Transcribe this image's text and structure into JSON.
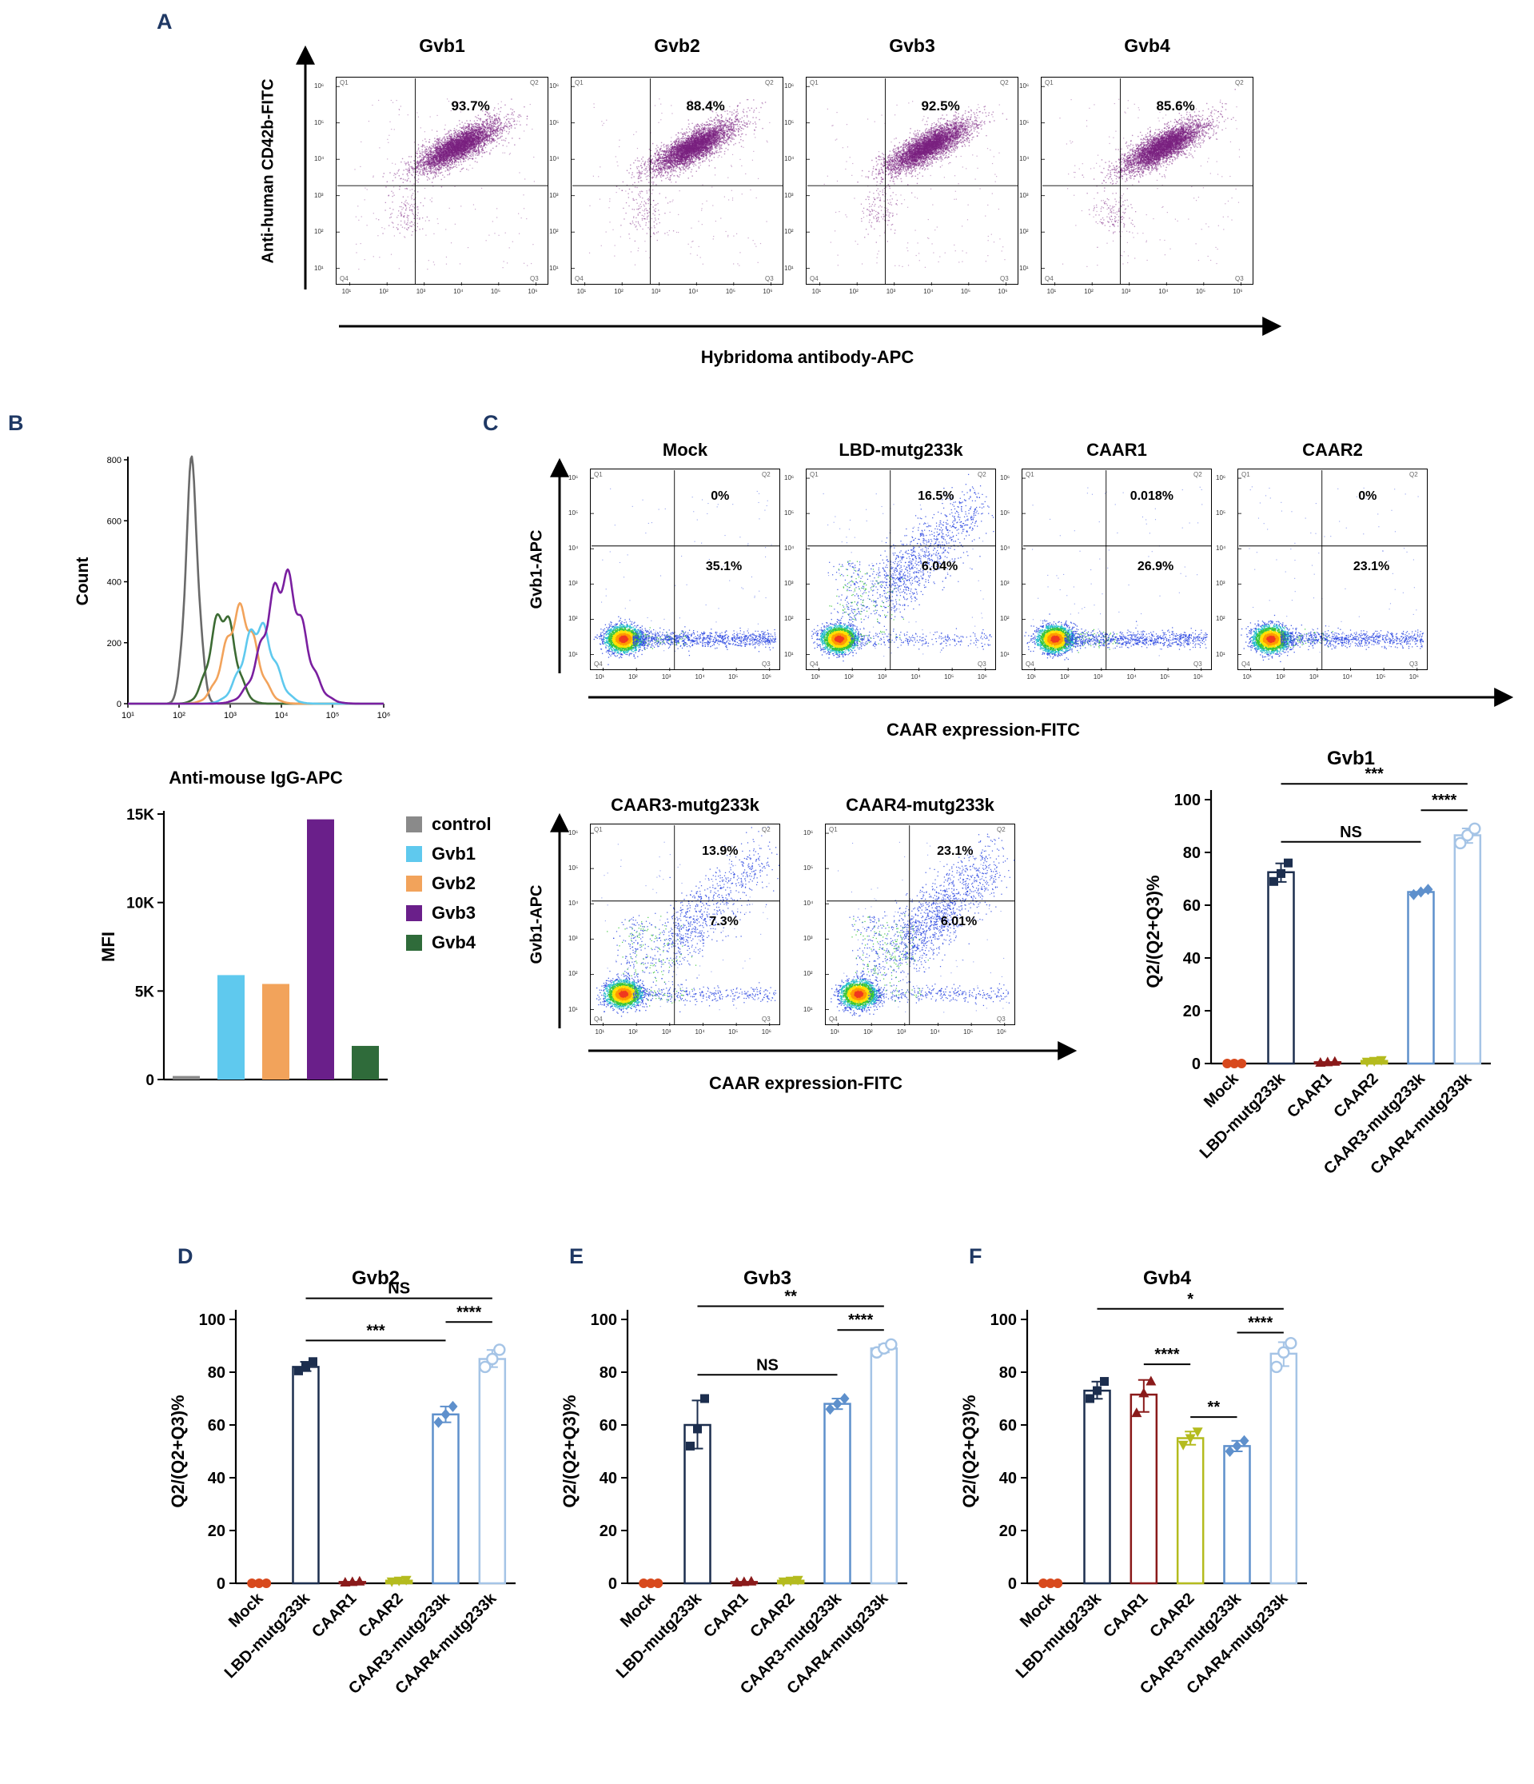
{
  "figure": {
    "background": "#ffffff",
    "panel_label_color": "#1f3864"
  },
  "panelA": {
    "label": "A",
    "y_axis_label": "Anti-human CD42b-FITC",
    "x_axis_label": "Hybridoma antibody-APC"
  },
  "panelB": {
    "label": "B"
  },
  "panelC": {
    "label": "C",
    "flow_y_label": "Gvb1-APC",
    "flow_x_label": "CAAR expression-FITC"
  },
  "panelD": {
    "label": "D"
  },
  "panelE": {
    "label": "E"
  },
  "panelF": {
    "label": "F"
  },
  "flow_axis_ticks": [
    "10¹",
    "10²",
    "10³",
    "10⁴",
    "10⁵",
    "10⁶"
  ],
  "quadrant_labels": [
    "Q1",
    "Q2",
    "Q3",
    "Q4"
  ],
  "category_styles": {
    "Mock": {
      "color": "#d8491d",
      "marker": "circle"
    },
    "LBD-mutg233k": {
      "color": "#1c2e4e",
      "marker": "square"
    },
    "CAAR1": {
      "color": "#8a1a1a",
      "marker": "triangle-up"
    },
    "CAAR2": {
      "color": "#b4bb1e",
      "marker": "triangle-down"
    },
    "CAAR3-mutg233k": {
      "color": "#5e90cc",
      "marker": "diamond"
    },
    "CAAR4-mutg233k": {
      "color": "#a5c4e6",
      "marker": "circle-open"
    },
    "control": {
      "color": "#8a8a8a"
    },
    "Gvb1": {
      "color": "#5fc9ee"
    },
    "Gvb2": {
      "color": "#f2a35b"
    },
    "Gvb3": {
      "color": "#6a1f8a"
    },
    "Gvb4": {
      "color": "#2f6b3a"
    }
  },
  "chart_data": [
    {
      "id": "flow_hybridoma",
      "type": "scatter",
      "subtype": "flow-cytometry-dotplot",
      "xlabel": "Hybridoma antibody-APC",
      "ylabel": "Anti-human CD42b-FITC",
      "axis_scale": "log10, decades 10^1 to 10^6",
      "quadrants": [
        "Q1",
        "Q2",
        "Q3",
        "Q4"
      ],
      "dot_color": "#7a2080",
      "plots": [
        {
          "title": "Gvb1",
          "q2_percent_label": "93.7%"
        },
        {
          "title": "Gvb2",
          "q2_percent_label": "88.4%"
        },
        {
          "title": "Gvb3",
          "q2_percent_label": "92.5%"
        },
        {
          "title": "Gvb4",
          "q2_percent_label": "85.6%"
        }
      ]
    },
    {
      "id": "igg_histogram",
      "type": "line",
      "xlabel": "Anti-mouse IgG-APC",
      "ylabel": "Count",
      "ylim": [
        0,
        800
      ],
      "yticks": [
        0,
        200,
        400,
        600,
        800
      ],
      "xticks": [
        "10¹",
        "10²",
        "10³",
        "10⁴",
        "10⁵",
        "10⁶"
      ],
      "series": [
        {
          "name": "control",
          "color": "#6a6a6a",
          "peak_x_log10": 2.25,
          "sigma_log10": 0.13,
          "peak_count": 740
        },
        {
          "name": "Gvb4",
          "color": "#3c6b33",
          "peak_x_log10": 2.85,
          "sigma_log10": 0.24,
          "peak_count": 300
        },
        {
          "name": "Gvb2",
          "color": "#f2a35b",
          "peak_x_log10": 3.2,
          "sigma_log10": 0.3,
          "peak_count": 300
        },
        {
          "name": "Gvb1",
          "color": "#5fc9ee",
          "peak_x_log10": 3.55,
          "sigma_log10": 0.3,
          "peak_count": 255
        },
        {
          "name": "Gvb3",
          "color": "#7a1fa0",
          "peak_x_log10": 4.05,
          "sigma_log10": 0.37,
          "peak_count": 410
        }
      ]
    },
    {
      "id": "mfi_bar",
      "type": "bar",
      "ylabel": "MFI",
      "ylim": [
        0,
        15000
      ],
      "yticks": [
        0,
        5000,
        10000,
        15000
      ],
      "ytick_labels": [
        "0",
        "5K",
        "10K",
        "15K"
      ],
      "categories": [
        "control",
        "Gvb1",
        "Gvb2",
        "Gvb3",
        "Gvb4"
      ],
      "values": [
        200,
        5900,
        5400,
        14700,
        1900
      ],
      "legend_position": "right"
    },
    {
      "id": "flow_caar",
      "type": "scatter",
      "subtype": "flow-cytometry-pseudocolor",
      "xlabel": "CAAR expression-FITC",
      "ylabel": "Gvb1-APC",
      "plots": [
        {
          "title": "Mock",
          "q2_percent_label": "0%",
          "q3_percent_label": "35.1%",
          "q2_cloud": false,
          "tail_n": 1100,
          "cloud_n": 0,
          "row": "top"
        },
        {
          "title": "LBD-mutg233k",
          "q2_percent_label": "16.5%",
          "q3_percent_label": "6.04%",
          "q2_cloud": true,
          "tail_n": 300,
          "cloud_n": 1150,
          "row": "top"
        },
        {
          "title": "CAAR1",
          "q2_percent_label": "0.018%",
          "q3_percent_label": "26.9%",
          "q2_cloud": false,
          "tail_n": 950,
          "cloud_n": 0,
          "row": "top"
        },
        {
          "title": "CAAR2",
          "q2_percent_label": "0%",
          "q3_percent_label": "23.1%",
          "q2_cloud": false,
          "tail_n": 880,
          "cloud_n": 0,
          "row": "top"
        },
        {
          "title": "CAAR3-mutg233k",
          "q2_percent_label": "13.9%",
          "q3_percent_label": "7.3%",
          "q2_cloud": true,
          "tail_n": 380,
          "cloud_n": 850,
          "row": "bottom"
        },
        {
          "title": "CAAR4-mutg233k",
          "q2_percent_label": "23.1%",
          "q3_percent_label": "6.01%",
          "q2_cloud": true,
          "tail_n": 330,
          "cloud_n": 1400,
          "row": "bottom"
        }
      ]
    },
    {
      "id": "q2_gvb1",
      "type": "bar",
      "title": "Gvb1",
      "ylabel": "Q2/(Q2+Q3)%",
      "ylim": [
        0,
        100
      ],
      "yticks": [
        0,
        20,
        40,
        60,
        80,
        100
      ],
      "categories": [
        "Mock",
        "LBD-mutg233k",
        "CAAR1",
        "CAAR2",
        "CAAR3-mutg233k",
        "CAAR4-mutg233k"
      ],
      "values": [
        0,
        72.5,
        0.5,
        1,
        65,
        86.5
      ],
      "points": [
        [
          0,
          0,
          0
        ],
        [
          69,
          72,
          76
        ],
        [
          0.3,
          0.5,
          0.7
        ],
        [
          0.7,
          1,
          1.3
        ],
        [
          64,
          65,
          66
        ],
        [
          83.5,
          86.5,
          89
        ]
      ],
      "annotations": [
        {
          "from": "LBD-mutg233k",
          "to": "CAAR4-mutg233k",
          "label": "***",
          "y": 106
        },
        {
          "from": "CAAR3-mutg233k",
          "to": "CAAR4-mutg233k",
          "label": "****",
          "y": 96
        },
        {
          "from": "LBD-mutg233k",
          "to": "CAAR3-mutg233k",
          "label": "NS",
          "y": 84
        }
      ]
    },
    {
      "id": "q2_gvb2",
      "type": "bar",
      "title": "Gvb2",
      "ylabel": "Q2/(Q2+Q3)%",
      "ylim": [
        0,
        100
      ],
      "yticks": [
        0,
        20,
        40,
        60,
        80,
        100
      ],
      "categories": [
        "Mock",
        "LBD-mutg233k",
        "CAAR1",
        "CAAR2",
        "CAAR3-mutg233k",
        "CAAR4-mutg233k"
      ],
      "values": [
        0,
        82,
        0.5,
        1,
        64,
        85
      ],
      "points": [
        [
          0,
          0,
          0
        ],
        [
          80.5,
          82,
          84
        ],
        [
          0.3,
          0.5,
          0.7
        ],
        [
          0.7,
          1,
          1.3
        ],
        [
          61,
          64,
          67
        ],
        [
          82,
          85,
          88.5
        ]
      ],
      "annotations": [
        {
          "from": "LBD-mutg233k",
          "to": "CAAR4-mutg233k",
          "label": "NS",
          "y": 108
        },
        {
          "from": "CAAR3-mutg233k",
          "to": "CAAR4-mutg233k",
          "label": "****",
          "y": 99
        },
        {
          "from": "LBD-mutg233k",
          "to": "CAAR3-mutg233k",
          "label": "***",
          "y": 92
        }
      ]
    },
    {
      "id": "q2_gvb3",
      "type": "bar",
      "title": "Gvb3",
      "ylabel": "Q2/(Q2+Q3)%",
      "ylim": [
        0,
        100
      ],
      "yticks": [
        0,
        20,
        40,
        60,
        80,
        100
      ],
      "categories": [
        "Mock",
        "LBD-mutg233k",
        "CAAR1",
        "CAAR2",
        "CAAR3-mutg233k",
        "CAAR4-mutg233k"
      ],
      "values": [
        0,
        60,
        0.5,
        1,
        68,
        89
      ],
      "points": [
        [
          0,
          0,
          0
        ],
        [
          52,
          58.5,
          70
        ],
        [
          0.3,
          0.5,
          0.7
        ],
        [
          0.7,
          1,
          1.3
        ],
        [
          66,
          68,
          70
        ],
        [
          87.5,
          89,
          90.5
        ]
      ],
      "annotations": [
        {
          "from": "LBD-mutg233k",
          "to": "CAAR4-mutg233k",
          "label": "**",
          "y": 105
        },
        {
          "from": "CAAR3-mutg233k",
          "to": "CAAR4-mutg233k",
          "label": "****",
          "y": 96
        },
        {
          "from": "LBD-mutg233k",
          "to": "CAAR3-mutg233k",
          "label": "NS",
          "y": 79
        }
      ]
    },
    {
      "id": "q2_gvb4",
      "type": "bar",
      "title": "Gvb4",
      "ylabel": "Q2/(Q2+Q3)%",
      "ylim": [
        0,
        100
      ],
      "yticks": [
        0,
        20,
        40,
        60,
        80,
        100
      ],
      "categories": [
        "Mock",
        "LBD-mutg233k",
        "CAAR1",
        "CAAR2",
        "CAAR3-mutg233k",
        "CAAR4-mutg233k"
      ],
      "values": [
        0,
        73,
        71.5,
        55,
        52,
        87
      ],
      "points": [
        [
          0,
          0,
          0
        ],
        [
          70,
          73,
          76.5
        ],
        [
          64.5,
          72,
          76.5
        ],
        [
          52.5,
          55,
          57.5
        ],
        [
          50,
          52,
          54
        ],
        [
          82,
          87.5,
          91
        ]
      ],
      "annotations": [
        {
          "from": "LBD-mutg233k",
          "to": "CAAR4-mutg233k",
          "label": "*",
          "y": 104
        },
        {
          "from": "CAAR1",
          "to": "CAAR2",
          "label": "****",
          "y": 83
        },
        {
          "from": "CAAR2",
          "to": "CAAR3-mutg233k",
          "label": "**",
          "y": 63
        },
        {
          "from": "CAAR3-mutg233k",
          "to": "CAAR4-mutg233k",
          "label": "****",
          "y": 95
        }
      ]
    }
  ]
}
